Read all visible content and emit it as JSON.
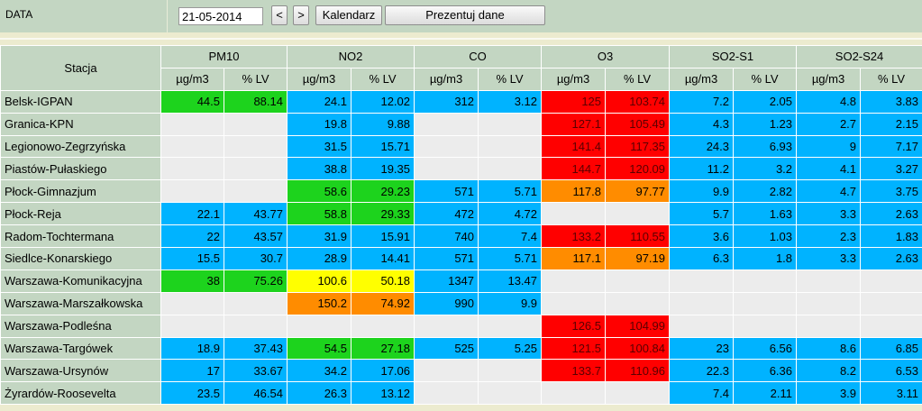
{
  "header": {
    "date_label": "DATA",
    "date_value": "21-05-2014",
    "prev_label": "<",
    "next_label": ">",
    "calendar_label": "Kalendarz",
    "show_label": "Prezentuj dane"
  },
  "table": {
    "station_header": "Stacja",
    "groups": [
      "PM10",
      "NO2",
      "CO",
      "O3",
      "SO2-S1",
      "SO2-S24"
    ],
    "units": [
      "µg/m3",
      "% LV"
    ],
    "colors": {
      "blue": "#00b3ff",
      "green": "#1dd31d",
      "yellow": "#ffff00",
      "orange": "#ff8c00",
      "red": "#ff0000",
      "empty": "#ececec"
    },
    "rows": [
      {
        "station": "Belsk-IGPAN",
        "cells": [
          [
            "44.5",
            "green"
          ],
          [
            "88.14",
            "green"
          ],
          [
            "24.1",
            "blue"
          ],
          [
            "12.02",
            "blue"
          ],
          [
            "312",
            "blue"
          ],
          [
            "3.12",
            "blue"
          ],
          [
            "125",
            "red"
          ],
          [
            "103.74",
            "red"
          ],
          [
            "7.2",
            "blue"
          ],
          [
            "2.05",
            "blue"
          ],
          [
            "4.8",
            "blue"
          ],
          [
            "3.83",
            "blue"
          ]
        ]
      },
      {
        "station": "Granica-KPN",
        "cells": [
          [
            "",
            "empty"
          ],
          [
            "",
            "empty"
          ],
          [
            "19.8",
            "blue"
          ],
          [
            "9.88",
            "blue"
          ],
          [
            "",
            "empty"
          ],
          [
            "",
            "empty"
          ],
          [
            "127.1",
            "red"
          ],
          [
            "105.49",
            "red"
          ],
          [
            "4.3",
            "blue"
          ],
          [
            "1.23",
            "blue"
          ],
          [
            "2.7",
            "blue"
          ],
          [
            "2.15",
            "blue"
          ]
        ]
      },
      {
        "station": "Legionowo-Zegrzyńska",
        "cells": [
          [
            "",
            "empty"
          ],
          [
            "",
            "empty"
          ],
          [
            "31.5",
            "blue"
          ],
          [
            "15.71",
            "blue"
          ],
          [
            "",
            "empty"
          ],
          [
            "",
            "empty"
          ],
          [
            "141.4",
            "red"
          ],
          [
            "117.35",
            "red"
          ],
          [
            "24.3",
            "blue"
          ],
          [
            "6.93",
            "blue"
          ],
          [
            "9",
            "blue"
          ],
          [
            "7.17",
            "blue"
          ]
        ]
      },
      {
        "station": "Piastów-Pułaskiego",
        "cells": [
          [
            "",
            "empty"
          ],
          [
            "",
            "empty"
          ],
          [
            "38.8",
            "blue"
          ],
          [
            "19.35",
            "blue"
          ],
          [
            "",
            "empty"
          ],
          [
            "",
            "empty"
          ],
          [
            "144.7",
            "red"
          ],
          [
            "120.09",
            "red"
          ],
          [
            "11.2",
            "blue"
          ],
          [
            "3.2",
            "blue"
          ],
          [
            "4.1",
            "blue"
          ],
          [
            "3.27",
            "blue"
          ]
        ]
      },
      {
        "station": "Płock-Gimnazjum",
        "cells": [
          [
            "",
            "empty"
          ],
          [
            "",
            "empty"
          ],
          [
            "58.6",
            "green"
          ],
          [
            "29.23",
            "green"
          ],
          [
            "571",
            "blue"
          ],
          [
            "5.71",
            "blue"
          ],
          [
            "117.8",
            "orange"
          ],
          [
            "97.77",
            "orange"
          ],
          [
            "9.9",
            "blue"
          ],
          [
            "2.82",
            "blue"
          ],
          [
            "4.7",
            "blue"
          ],
          [
            "3.75",
            "blue"
          ]
        ]
      },
      {
        "station": "Płock-Reja",
        "cells": [
          [
            "22.1",
            "blue"
          ],
          [
            "43.77",
            "blue"
          ],
          [
            "58.8",
            "green"
          ],
          [
            "29.33",
            "green"
          ],
          [
            "472",
            "blue"
          ],
          [
            "4.72",
            "blue"
          ],
          [
            "",
            "empty"
          ],
          [
            "",
            "empty"
          ],
          [
            "5.7",
            "blue"
          ],
          [
            "1.63",
            "blue"
          ],
          [
            "3.3",
            "blue"
          ],
          [
            "2.63",
            "blue"
          ]
        ]
      },
      {
        "station": "Radom-Tochtermana",
        "cells": [
          [
            "22",
            "blue"
          ],
          [
            "43.57",
            "blue"
          ],
          [
            "31.9",
            "blue"
          ],
          [
            "15.91",
            "blue"
          ],
          [
            "740",
            "blue"
          ],
          [
            "7.4",
            "blue"
          ],
          [
            "133.2",
            "red"
          ],
          [
            "110.55",
            "red"
          ],
          [
            "3.6",
            "blue"
          ],
          [
            "1.03",
            "blue"
          ],
          [
            "2.3",
            "blue"
          ],
          [
            "1.83",
            "blue"
          ]
        ]
      },
      {
        "station": "Siedlce-Konarskiego",
        "cells": [
          [
            "15.5",
            "blue"
          ],
          [
            "30.7",
            "blue"
          ],
          [
            "28.9",
            "blue"
          ],
          [
            "14.41",
            "blue"
          ],
          [
            "571",
            "blue"
          ],
          [
            "5.71",
            "blue"
          ],
          [
            "117.1",
            "orange"
          ],
          [
            "97.19",
            "orange"
          ],
          [
            "6.3",
            "blue"
          ],
          [
            "1.8",
            "blue"
          ],
          [
            "3.3",
            "blue"
          ],
          [
            "2.63",
            "blue"
          ]
        ]
      },
      {
        "station": "Warszawa-Komunikacyjna",
        "cells": [
          [
            "38",
            "green"
          ],
          [
            "75.26",
            "green"
          ],
          [
            "100.6",
            "yellow"
          ],
          [
            "50.18",
            "yellow"
          ],
          [
            "1347",
            "blue"
          ],
          [
            "13.47",
            "blue"
          ],
          [
            "",
            "empty"
          ],
          [
            "",
            "empty"
          ],
          [
            "",
            "empty"
          ],
          [
            "",
            "empty"
          ],
          [
            "",
            "empty"
          ],
          [
            "",
            "empty"
          ]
        ]
      },
      {
        "station": "Warszawa-Marszałkowska",
        "cells": [
          [
            "",
            "empty"
          ],
          [
            "",
            "empty"
          ],
          [
            "150.2",
            "orange"
          ],
          [
            "74.92",
            "orange"
          ],
          [
            "990",
            "blue"
          ],
          [
            "9.9",
            "blue"
          ],
          [
            "",
            "empty"
          ],
          [
            "",
            "empty"
          ],
          [
            "",
            "empty"
          ],
          [
            "",
            "empty"
          ],
          [
            "",
            "empty"
          ],
          [
            "",
            "empty"
          ]
        ]
      },
      {
        "station": "Warszawa-Podleśna",
        "cells": [
          [
            "",
            "empty"
          ],
          [
            "",
            "empty"
          ],
          [
            "",
            "empty"
          ],
          [
            "",
            "empty"
          ],
          [
            "",
            "empty"
          ],
          [
            "",
            "empty"
          ],
          [
            "126.5",
            "red"
          ],
          [
            "104.99",
            "red"
          ],
          [
            "",
            "empty"
          ],
          [
            "",
            "empty"
          ],
          [
            "",
            "empty"
          ],
          [
            "",
            "empty"
          ]
        ]
      },
      {
        "station": "Warszawa-Targówek",
        "cells": [
          [
            "18.9",
            "blue"
          ],
          [
            "37.43",
            "blue"
          ],
          [
            "54.5",
            "green"
          ],
          [
            "27.18",
            "green"
          ],
          [
            "525",
            "blue"
          ],
          [
            "5.25",
            "blue"
          ],
          [
            "121.5",
            "red"
          ],
          [
            "100.84",
            "red"
          ],
          [
            "23",
            "blue"
          ],
          [
            "6.56",
            "blue"
          ],
          [
            "8.6",
            "blue"
          ],
          [
            "6.85",
            "blue"
          ]
        ]
      },
      {
        "station": "Warszawa-Ursynów",
        "cells": [
          [
            "17",
            "blue"
          ],
          [
            "33.67",
            "blue"
          ],
          [
            "34.2",
            "blue"
          ],
          [
            "17.06",
            "blue"
          ],
          [
            "",
            "empty"
          ],
          [
            "",
            "empty"
          ],
          [
            "133.7",
            "red"
          ],
          [
            "110.96",
            "red"
          ],
          [
            "22.3",
            "blue"
          ],
          [
            "6.36",
            "blue"
          ],
          [
            "8.2",
            "blue"
          ],
          [
            "6.53",
            "blue"
          ]
        ]
      },
      {
        "station": "Żyrardów-Roosevelta",
        "cells": [
          [
            "23.5",
            "blue"
          ],
          [
            "46.54",
            "blue"
          ],
          [
            "26.3",
            "blue"
          ],
          [
            "13.12",
            "blue"
          ],
          [
            "",
            "empty"
          ],
          [
            "",
            "empty"
          ],
          [
            "",
            "empty"
          ],
          [
            "",
            "empty"
          ],
          [
            "7.4",
            "blue"
          ],
          [
            "2.11",
            "blue"
          ],
          [
            "3.9",
            "blue"
          ],
          [
            "3.11",
            "blue"
          ]
        ]
      }
    ]
  }
}
